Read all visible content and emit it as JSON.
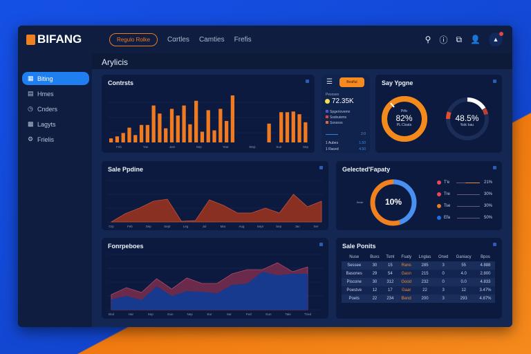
{
  "header": {
    "logo": "BIFANG",
    "pill": "Rеgulo Rolke",
    "nav": [
      "Cαrtles",
      "Camties",
      "Frefis"
    ],
    "icons": [
      "search-icon",
      "info-icon",
      "share-icon",
      "user-icon",
      "bell-icon"
    ]
  },
  "sidebar": {
    "items": [
      {
        "label": "Biting",
        "icon": "calendar-icon",
        "active": true
      },
      {
        "label": "Hmes",
        "icon": "folder-icon"
      },
      {
        "label": "Cnders",
        "icon": "clock-icon"
      },
      {
        "label": "Lagyts",
        "icon": "gift-icon"
      },
      {
        "label": "Frielis",
        "icon": "settings-icon"
      }
    ]
  },
  "page": {
    "title": "Arylicis"
  },
  "contracts": {
    "title": "Contrsts",
    "x_labels": [
      "Feb",
      "Yan",
      "Jam",
      "Sep",
      "Year",
      "Step",
      "Sue",
      "Sep"
    ],
    "values": [
      6,
      9,
      14,
      22,
      11,
      26,
      26,
      55,
      43,
      21,
      50,
      40,
      55,
      27,
      62,
      16,
      48,
      18,
      50,
      32,
      70,
      0,
      0,
      0,
      0,
      0,
      28,
      0,
      45,
      45,
      46,
      42,
      30
    ],
    "color": "#f07a20"
  },
  "stats": {
    "button": "Beaflut",
    "label": "Pesoses",
    "value": "72.35K",
    "legend": [
      "Spgeriovemn",
      "Sssbuisms",
      "Ssnssvs"
    ],
    "foot": "2:0",
    "rows": [
      [
        "1 Aubes",
        "1.50"
      ],
      [
        "1 Raced",
        "4.50"
      ]
    ]
  },
  "donuts": {
    "title": "Say Ypgne",
    "d1": {
      "label": "Prfo",
      "value": "82%",
      "sub": "PL:Cisats",
      "percent": 82
    },
    "d2": {
      "value": "48.5%",
      "sub": "%dc kau",
      "percent": 48.5
    }
  },
  "pipeline": {
    "title": "Sale Ppdine",
    "x_labels": [
      "Grp",
      "Feb",
      "Sep",
      "Sept",
      "Leg",
      "Jul",
      "Mar",
      "Aug",
      "Sept",
      "Sep",
      "Jan",
      "Ser"
    ],
    "values": [
      0,
      12,
      20,
      30,
      33,
      1,
      2,
      32,
      24,
      13,
      13,
      20,
      13,
      40,
      22,
      30
    ],
    "color": "#8a3022"
  },
  "capacity": {
    "title": "Gelected'Fapaty",
    "center": "10%",
    "left_label": "Beab",
    "legend": [
      {
        "label": "T'e",
        "value": "21%",
        "color": "#e84858"
      },
      {
        "label": "Tre",
        "value": "30%",
        "color": "#e84858"
      },
      {
        "label": "Tse",
        "value": "30%",
        "color": "#f07a20"
      },
      {
        "label": "Efa",
        "value": "50%",
        "color": "#1f6fe0"
      }
    ],
    "segments": [
      {
        "color": "#4a90f0",
        "percent": 45
      },
      {
        "color": "#f08020",
        "percent": 55
      }
    ]
  },
  "forecast": {
    "title": "Fonrpeboes",
    "x_labels": [
      "Bnd",
      "Har",
      "Sep",
      "Gun",
      "Nep",
      "Eur",
      "Sar",
      "Fed",
      "Gun",
      "Tale",
      "Tzed"
    ],
    "top": [
      22,
      32,
      25,
      45,
      30,
      46,
      38,
      38,
      52,
      58,
      58,
      68,
      55,
      62
    ],
    "bottom": [
      15,
      20,
      14,
      34,
      20,
      27,
      26,
      24,
      36,
      38,
      55,
      50,
      52,
      52
    ],
    "top_color": "#6a2a4c",
    "bottom_color": "#173a8e"
  },
  "profits": {
    "title": "Sale Ponits",
    "columns": [
      "Nuse",
      "Buxs",
      "Tsml",
      "Fsaty",
      "Lnglas",
      "Orwd",
      "Ganiacy",
      "Bpos"
    ],
    "rows": [
      [
        "Sessee",
        "30",
        "15",
        "Rans",
        "285",
        "3",
        "55",
        "4.888"
      ],
      [
        "Basones",
        "29",
        "54",
        "Gasn",
        "215",
        "0",
        "4.0",
        "2.800"
      ],
      [
        "Piscone",
        "30",
        "312",
        "Good",
        "232",
        "0",
        "0.0",
        "4.833"
      ],
      [
        "Poestve",
        "12",
        "17",
        "Gaar",
        "22",
        "3",
        "12",
        "3.47%"
      ],
      [
        "Poets",
        "22",
        "234",
        "Bend",
        "200",
        "3",
        "293",
        "4.87%"
      ]
    ]
  }
}
